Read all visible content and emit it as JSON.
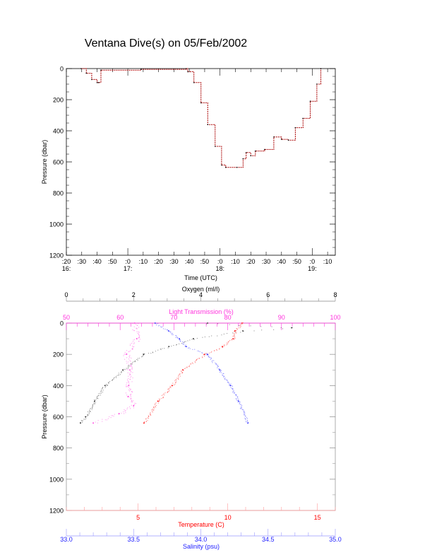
{
  "title": "Ventana Dive(s) on 05/Feb/2002",
  "colors": {
    "axis": "#000000",
    "pressure_line": "#aa0000",
    "oxygen": "#222222",
    "light": "#ff33dd",
    "temperature": "#ff0000",
    "salinity": "#2222ff"
  },
  "chart_data": [
    {
      "type": "line",
      "title": "Ventana Dive(s) on 05/Feb/2002",
      "xlabel": "Time (UTC)",
      "ylabel": "Pressure (dbar)",
      "x_units": "minutes after 16:00 UTC",
      "xlim": [
        20,
        195
      ],
      "ylim": [
        1200,
        0
      ],
      "yticks": [
        "0",
        "200",
        "400",
        "600",
        "800",
        "1000",
        "1200"
      ],
      "xtick_minutes": [
        20,
        30,
        40,
        50,
        60,
        70,
        80,
        90,
        100,
        110,
        120,
        130,
        140,
        150,
        160,
        170,
        180,
        190
      ],
      "xtick_labels": [
        ":20",
        ":30",
        ":40",
        ":50",
        ":0",
        ":10",
        ":20",
        ":30",
        ":40",
        ":50",
        ":0",
        ":10",
        ":20",
        ":30",
        ":40",
        ":50",
        ":0",
        ":10"
      ],
      "hour_labels": [
        {
          "minute": 20,
          "label": "16:"
        },
        {
          "minute": 60,
          "label": "17:"
        },
        {
          "minute": 120,
          "label": "18:"
        },
        {
          "minute": 180,
          "label": "19:"
        }
      ],
      "series": [
        {
          "name": "Pressure",
          "x": [
            29.6,
            33,
            36.5,
            40,
            41,
            42.5,
            68.6,
            98,
            99,
            103,
            107.6,
            112,
            116.8,
            121,
            123.7,
            131,
            135,
            137,
            140,
            143,
            149,
            155,
            160,
            164.5,
            169,
            174,
            178.7,
            183,
            185.6
          ],
          "y": [
            0,
            30,
            70,
            90,
            90,
            10,
            5,
            0,
            20,
            90,
            220,
            360,
            500,
            620,
            635,
            635,
            580,
            540,
            560,
            530,
            520,
            440,
            455,
            460,
            380,
            320,
            210,
            100,
            0
          ]
        }
      ]
    },
    {
      "type": "scatter",
      "ylabel": "Pressure (dbar)",
      "ylim": [
        1200,
        0
      ],
      "yticks": [
        "0",
        "200",
        "400",
        "600",
        "800",
        "1000",
        "1200"
      ],
      "axes": {
        "oxygen": {
          "label": "Oxygen (ml/l)",
          "range": [
            0,
            8
          ],
          "ticks": [
            "0",
            "2",
            "4",
            "6",
            "8"
          ]
        },
        "light": {
          "label": "Light Transmission (%)",
          "range": [
            50,
            100
          ],
          "ticks": [
            "50",
            "60",
            "70",
            "80",
            "90",
            "100"
          ]
        },
        "temperature": {
          "label": "Temperature (C)",
          "range": [
            1,
            16
          ],
          "ticks": [
            "5",
            "10",
            "15"
          ]
        },
        "salinity": {
          "label": "Salinity (psu)",
          "range": [
            33,
            35
          ],
          "ticks": [
            "33.0",
            "33.5",
            "34.0",
            "34.5",
            "35.0"
          ]
        }
      },
      "series": [
        {
          "name": "Oxygen",
          "axis": "oxygen",
          "pressure": [
            0,
            30,
            50,
            100,
            150,
            200,
            300,
            400,
            500,
            600,
            640
          ],
          "values": [
            4.2,
            6.7,
            5.25,
            3.78,
            3.05,
            2.3,
            1.68,
            1.15,
            0.84,
            0.57,
            0.42
          ]
        },
        {
          "name": "Light Transmission",
          "axis": "light",
          "pressure": [
            0,
            100,
            200,
            300,
            400,
            470,
            530,
            580,
            640
          ],
          "values": [
            62.7,
            63.1,
            61.2,
            61.8,
            61.6,
            61.5,
            62.5,
            59.8,
            55
          ]
        },
        {
          "name": "Temperature",
          "axis": "temperature",
          "pressure": [
            0,
            50,
            100,
            150,
            200,
            300,
            400,
            500,
            640
          ],
          "values": [
            10.8,
            10.4,
            10.3,
            9.7,
            8.7,
            7.5,
            6.9,
            6.1,
            5.33
          ]
        },
        {
          "name": "Salinity",
          "axis": "salinity",
          "pressure": [
            0,
            50,
            100,
            150,
            200,
            300,
            400,
            500,
            640
          ],
          "values": [
            33.66,
            33.76,
            33.84,
            33.89,
            34.05,
            34.14,
            34.22,
            34.28,
            34.35
          ]
        }
      ]
    }
  ]
}
